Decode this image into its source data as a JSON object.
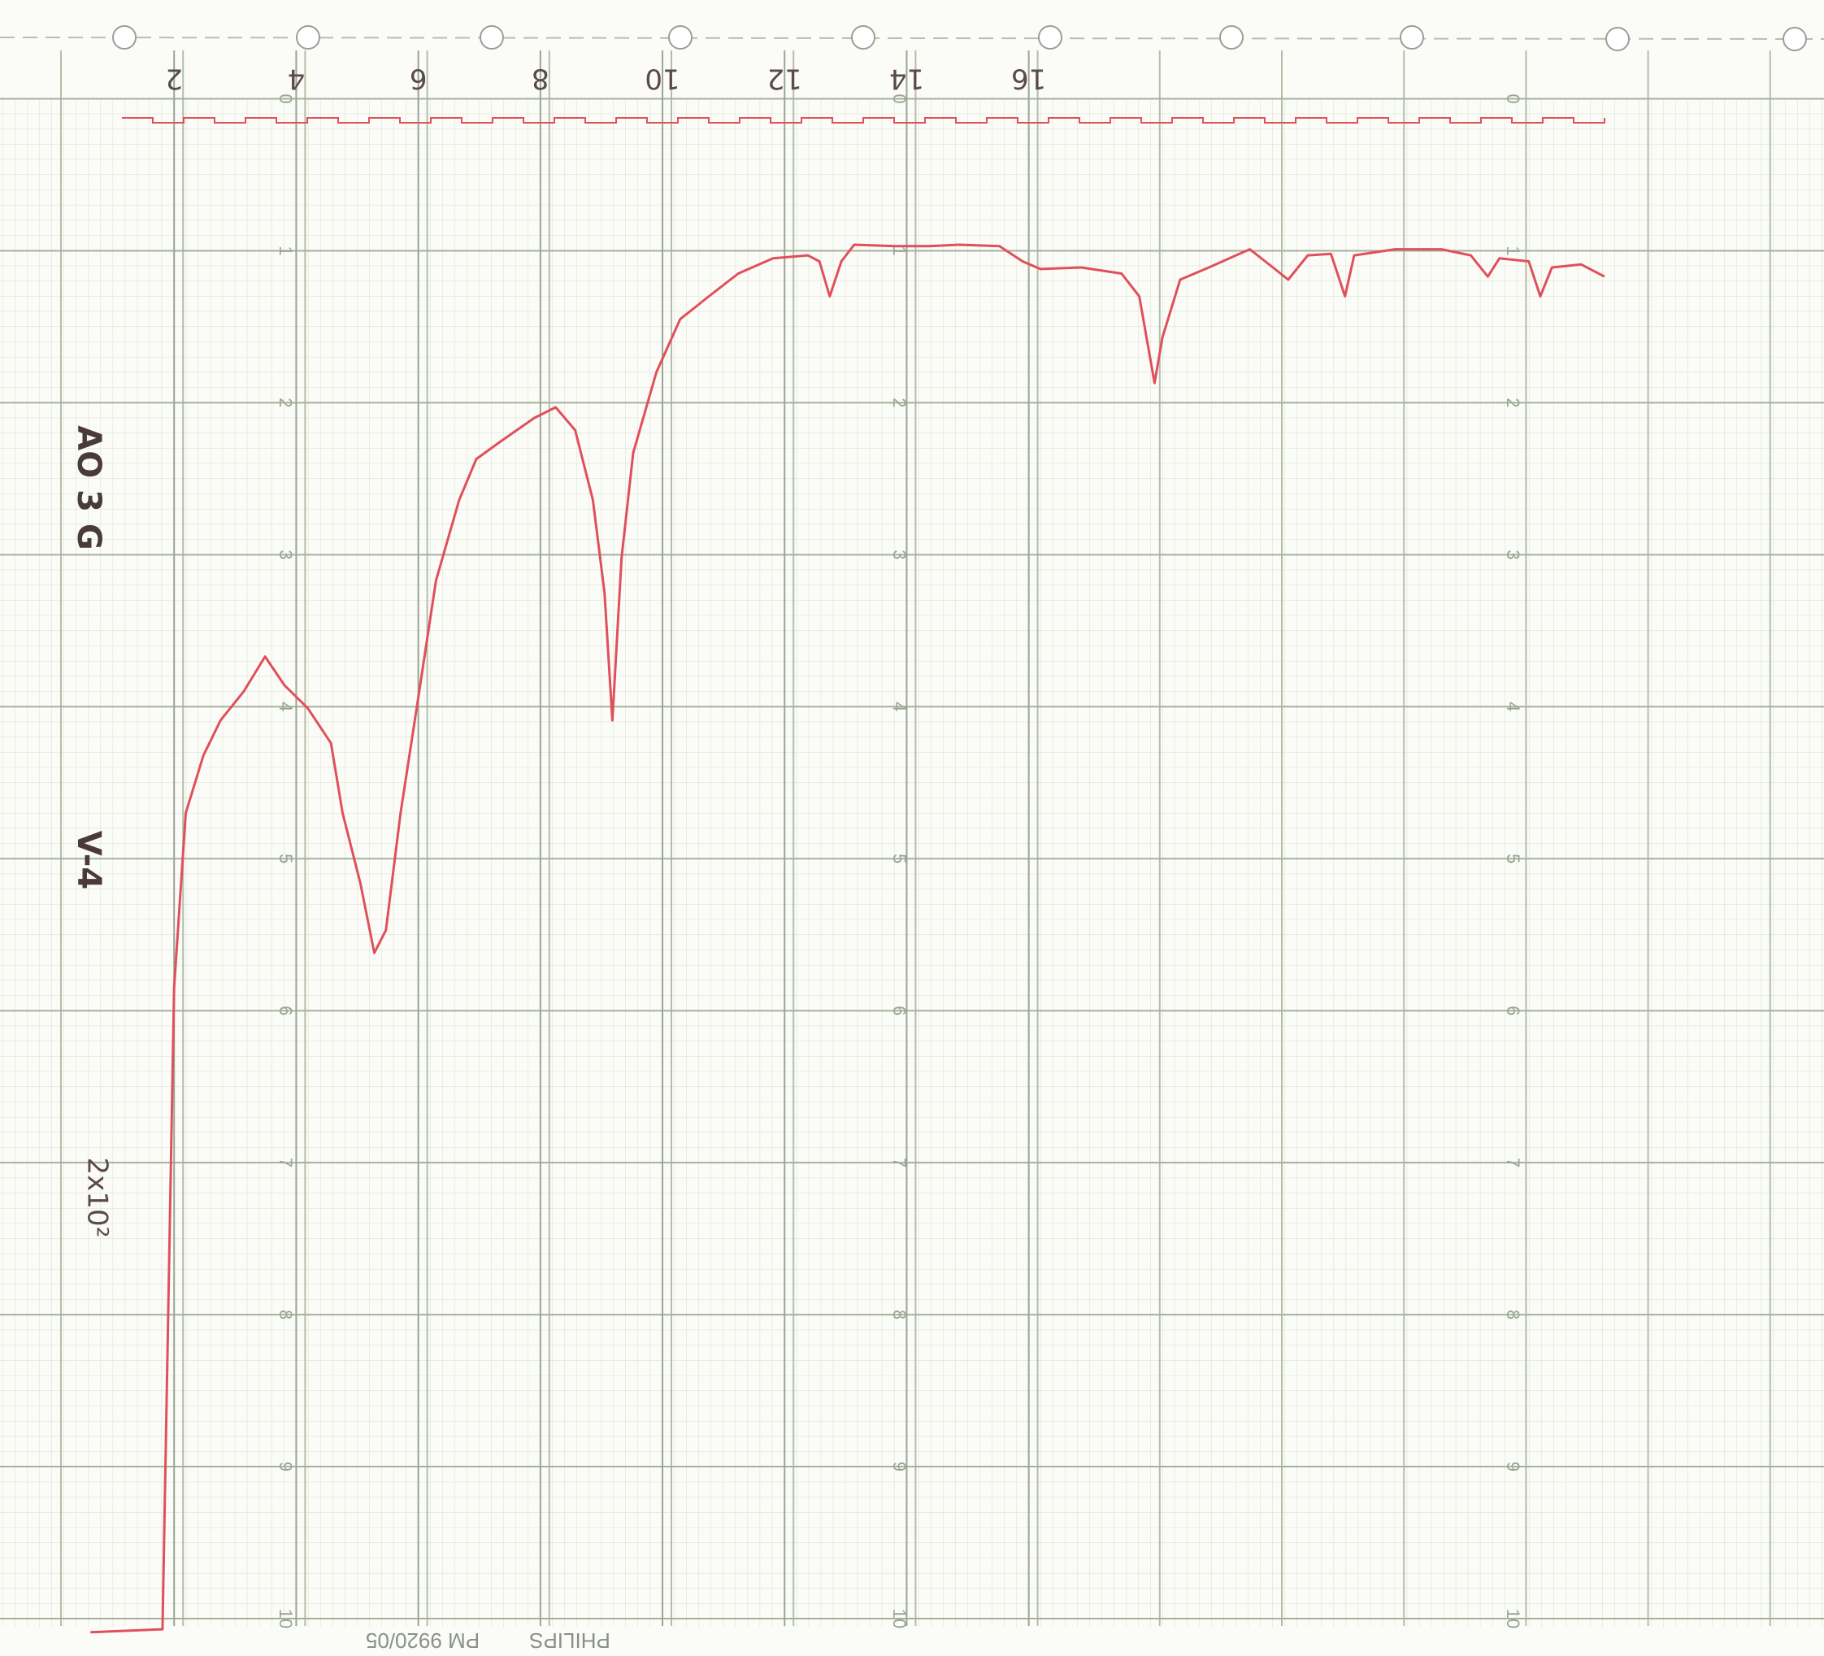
{
  "chart_data": {
    "type": "line",
    "color": "#e0505a",
    "x": [
      0.63,
      1.81,
      2.0,
      2.19,
      2.48,
      2.76,
      3.14,
      3.49,
      3.81,
      4.19,
      4.57,
      4.76,
      5.05,
      5.28,
      5.47,
      5.71,
      6.0,
      6.29,
      6.67,
      6.95,
      7.33,
      7.9,
      8.25,
      8.57,
      8.86,
      9.05,
      9.18,
      9.33,
      9.52,
      9.9,
      10.29,
      10.76,
      11.24,
      11.81,
      12.38,
      12.57,
      12.74,
      12.93,
      13.14,
      13.81,
      14.38,
      14.86,
      15.52,
      15.9,
      16.19,
      16.86,
      17.52,
      17.81,
      18.06,
      18.19,
      18.48,
      18.95,
      19.62,
      20.0,
      20.25,
      20.57,
      20.95,
      21.18,
      21.33,
      22.0,
      22.76,
      23.24,
      23.52,
      23.71,
      24.19,
      24.38,
      24.57,
      25.05,
      25.43
    ],
    "values": [
      10.09,
      10.07,
      5.85,
      4.7,
      4.32,
      4.09,
      3.9,
      3.67,
      3.86,
      4.01,
      4.24,
      4.7,
      5.16,
      5.62,
      5.47,
      4.7,
      3.94,
      3.17,
      2.64,
      2.37,
      2.26,
      2.1,
      2.03,
      2.18,
      2.64,
      3.25,
      4.09,
      3.02,
      2.33,
      1.8,
      1.45,
      1.3,
      1.15,
      1.05,
      1.03,
      1.07,
      1.3,
      1.07,
      0.96,
      0.97,
      0.97,
      0.96,
      0.97,
      1.07,
      1.12,
      1.11,
      1.15,
      1.3,
      1.87,
      1.57,
      1.19,
      1.11,
      0.99,
      1.11,
      1.19,
      1.03,
      1.02,
      1.3,
      1.03,
      0.99,
      0.99,
      1.03,
      1.17,
      1.05,
      1.07,
      1.3,
      1.11,
      1.09,
      1.17
    ],
    "xlim": [
      0,
      29
    ],
    "xticks": [
      2,
      4,
      6,
      8,
      10,
      12,
      14,
      16
    ],
    "ylim": [
      0,
      10
    ],
    "y_reversed": true,
    "yticks": [
      0,
      1,
      2,
      3,
      4,
      5,
      6,
      7,
      8,
      9,
      10
    ],
    "grid": true,
    "annotations": [
      "AO 3 G",
      "V-4",
      "2x10²",
      "PHILIPS",
      "PM 9920/05"
    ]
  }
}
